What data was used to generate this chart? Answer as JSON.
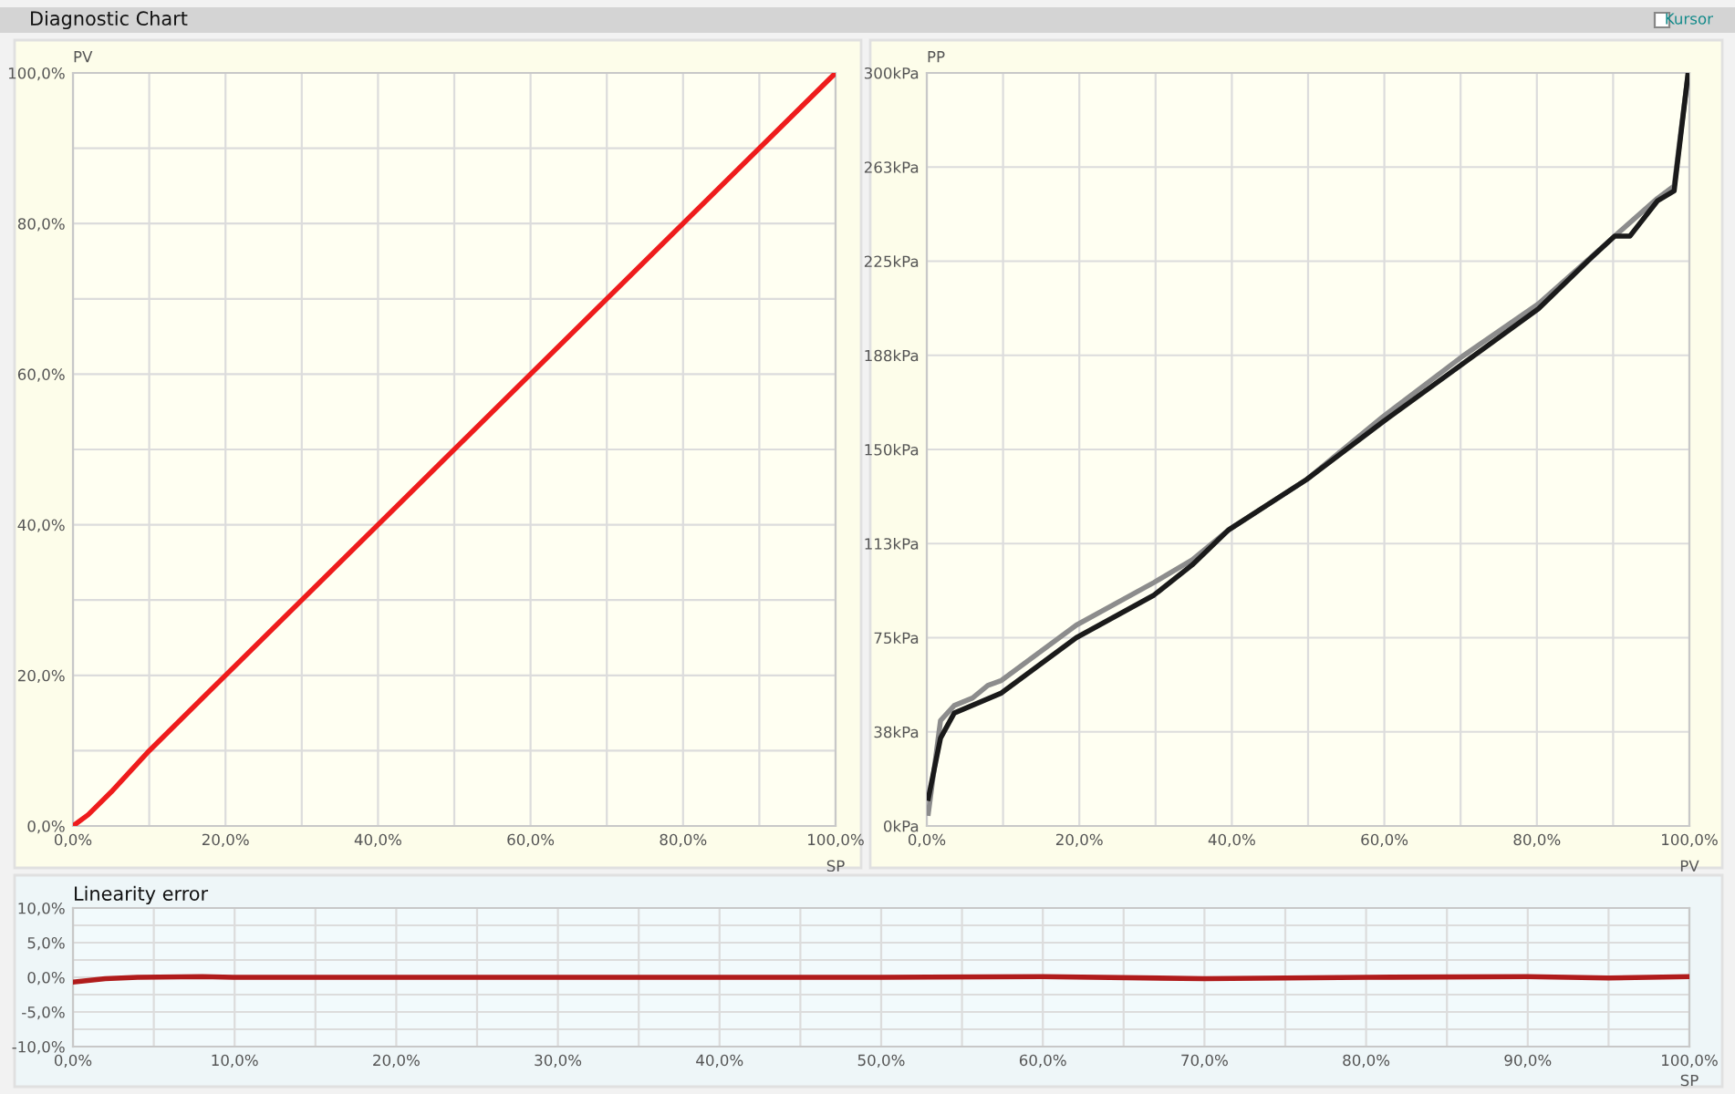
{
  "chart_data": [
    {
      "type": "line",
      "title": "Diagnostic Chart",
      "xlabel": "SP",
      "ylabel": "PV",
      "grid": true,
      "line_style": "solid",
      "marker": "none",
      "xlim": [
        0,
        100
      ],
      "ylim": [
        0,
        100
      ],
      "xticks": [
        {
          "value": 0,
          "label": "0,0%"
        },
        {
          "value": 10,
          "label": null
        },
        {
          "value": 20,
          "label": "20,0%"
        },
        {
          "value": 30,
          "label": null
        },
        {
          "value": 40,
          "label": "40,0%"
        },
        {
          "value": 50,
          "label": null
        },
        {
          "value": 60,
          "label": "60,0%"
        },
        {
          "value": 70,
          "label": null
        },
        {
          "value": 80,
          "label": "80,0%"
        },
        {
          "value": 90,
          "label": null
        },
        {
          "value": 100,
          "label": "100,0%"
        }
      ],
      "yticks": [
        {
          "value": 0,
          "label": "0,0%"
        },
        {
          "value": 10,
          "label": null
        },
        {
          "value": 20,
          "label": "20,0%"
        },
        {
          "value": 30,
          "label": null
        },
        {
          "value": 40,
          "label": "40,0%"
        },
        {
          "value": 50,
          "label": null
        },
        {
          "value": 60,
          "label": "60,0%"
        },
        {
          "value": 70,
          "label": null
        },
        {
          "value": 80,
          "label": "80,0%"
        },
        {
          "value": 90,
          "label": null
        },
        {
          "value": 100,
          "label": "100,0%"
        }
      ],
      "series": [
        {
          "color": "#ee1c1c",
          "x": [
            0,
            2,
            5,
            10,
            100
          ],
          "values": [
            0,
            1.5,
            4.5,
            10,
            100
          ]
        }
      ]
    },
    {
      "type": "line",
      "xlabel": "PV",
      "ylabel": "PP",
      "grid": true,
      "line_style": "solid",
      "marker": "none",
      "annotations": [
        "Kursor"
      ],
      "xlim": [
        0,
        100
      ],
      "ylim": [
        0,
        300
      ],
      "xticks": [
        {
          "value": 0,
          "label": "0,0%"
        },
        {
          "value": 10,
          "label": null
        },
        {
          "value": 20,
          "label": "20,0%"
        },
        {
          "value": 30,
          "label": null
        },
        {
          "value": 40,
          "label": "40,0%"
        },
        {
          "value": 50,
          "label": null
        },
        {
          "value": 60,
          "label": "60,0%"
        },
        {
          "value": 70,
          "label": null
        },
        {
          "value": 80,
          "label": "80,0%"
        },
        {
          "value": 90,
          "label": null
        },
        {
          "value": 100,
          "label": "100,0%"
        }
      ],
      "yticks": [
        {
          "value": 0,
          "label": "0kPa"
        },
        {
          "value": 37.5,
          "label": "38kPa"
        },
        {
          "value": 75,
          "label": "75kPa"
        },
        {
          "value": 112.5,
          "label": "113kPa"
        },
        {
          "value": 150,
          "label": "150kPa"
        },
        {
          "value": 187.5,
          "label": "188kPa"
        },
        {
          "value": 225,
          "label": "225kPa"
        },
        {
          "value": 262.5,
          "label": "263kPa"
        },
        {
          "value": 300,
          "label": "300kPa"
        }
      ],
      "series": [
        {
          "color": "#8c8c8c",
          "x": [
            0.2,
            1.8,
            3.6,
            6,
            8,
            9.8,
            19.6,
            29.8,
            34.8,
            39.6,
            49.8,
            59.8,
            70.2,
            80.2,
            90.2,
            95.8,
            98,
            99.8
          ],
          "values": [
            5,
            42,
            48,
            51,
            56,
            58,
            80,
            97,
            106,
            118,
            138,
            163,
            187,
            208,
            235,
            250,
            255,
            299
          ]
        },
        {
          "color": "#1a1a1a",
          "x": [
            0.2,
            1.8,
            3.6,
            9.8,
            19.6,
            29.8,
            34.8,
            39.6,
            49.8,
            59.8,
            70.2,
            80.2,
            87,
            90.2,
            92.2,
            95.8,
            98,
            99.8
          ],
          "values": [
            11,
            35,
            45,
            53,
            75,
            92,
            104,
            118,
            138,
            161,
            184,
            206,
            226,
            235,
            235,
            249,
            253,
            299
          ]
        }
      ]
    },
    {
      "type": "line",
      "title": "Linearity error",
      "xlabel": "SP",
      "grid": true,
      "line_style": "solid",
      "marker": "none",
      "xlim": [
        0,
        100
      ],
      "ylim": [
        -10,
        10
      ],
      "xticks": [
        {
          "value": 0,
          "label": "0,0%"
        },
        {
          "value": 5,
          "label": null
        },
        {
          "value": 10,
          "label": "10,0%"
        },
        {
          "value": 15,
          "label": null
        },
        {
          "value": 20,
          "label": "20,0%"
        },
        {
          "value": 25,
          "label": null
        },
        {
          "value": 30,
          "label": "30,0%"
        },
        {
          "value": 35,
          "label": null
        },
        {
          "value": 40,
          "label": "40,0%"
        },
        {
          "value": 45,
          "label": null
        },
        {
          "value": 50,
          "label": "50,0%"
        },
        {
          "value": 55,
          "label": null
        },
        {
          "value": 60,
          "label": "60,0%"
        },
        {
          "value": 65,
          "label": null
        },
        {
          "value": 70,
          "label": "70,0%"
        },
        {
          "value": 75,
          "label": null
        },
        {
          "value": 80,
          "label": "80,0%"
        },
        {
          "value": 85,
          "label": null
        },
        {
          "value": 90,
          "label": "90,0%"
        },
        {
          "value": 95,
          "label": null
        },
        {
          "value": 100,
          "label": "100,0%"
        }
      ],
      "yticks": [
        {
          "value": -10,
          "label": "-10,0%"
        },
        {
          "value": -7.5,
          "label": null
        },
        {
          "value": -5,
          "label": "-5,0%"
        },
        {
          "value": -2.5,
          "label": null
        },
        {
          "value": 0,
          "label": "0,0%"
        },
        {
          "value": 2.5,
          "label": null
        },
        {
          "value": 5,
          "label": "5,0%"
        },
        {
          "value": 7.5,
          "label": null
        },
        {
          "value": 10,
          "label": "10,0%"
        }
      ],
      "series": [
        {
          "color": "#b01c1c",
          "x": [
            0,
            2,
            4,
            8,
            10,
            30,
            50,
            60,
            70,
            80,
            90,
            95,
            100
          ],
          "values": [
            -0.7,
            -0.2,
            0,
            0.1,
            0,
            0,
            0,
            0.1,
            -0.2,
            0,
            0.1,
            -0.1,
            0.1
          ]
        }
      ]
    }
  ]
}
